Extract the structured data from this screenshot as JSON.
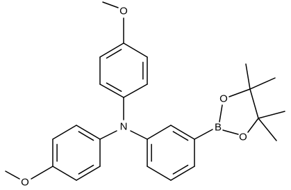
{
  "atoms": [
    {
      "label": "O"
    },
    {
      "label": "N"
    },
    {
      "label": "O"
    },
    {
      "label": "B"
    },
    {
      "label": "O"
    },
    {
      "label": "O"
    }
  ]
}
